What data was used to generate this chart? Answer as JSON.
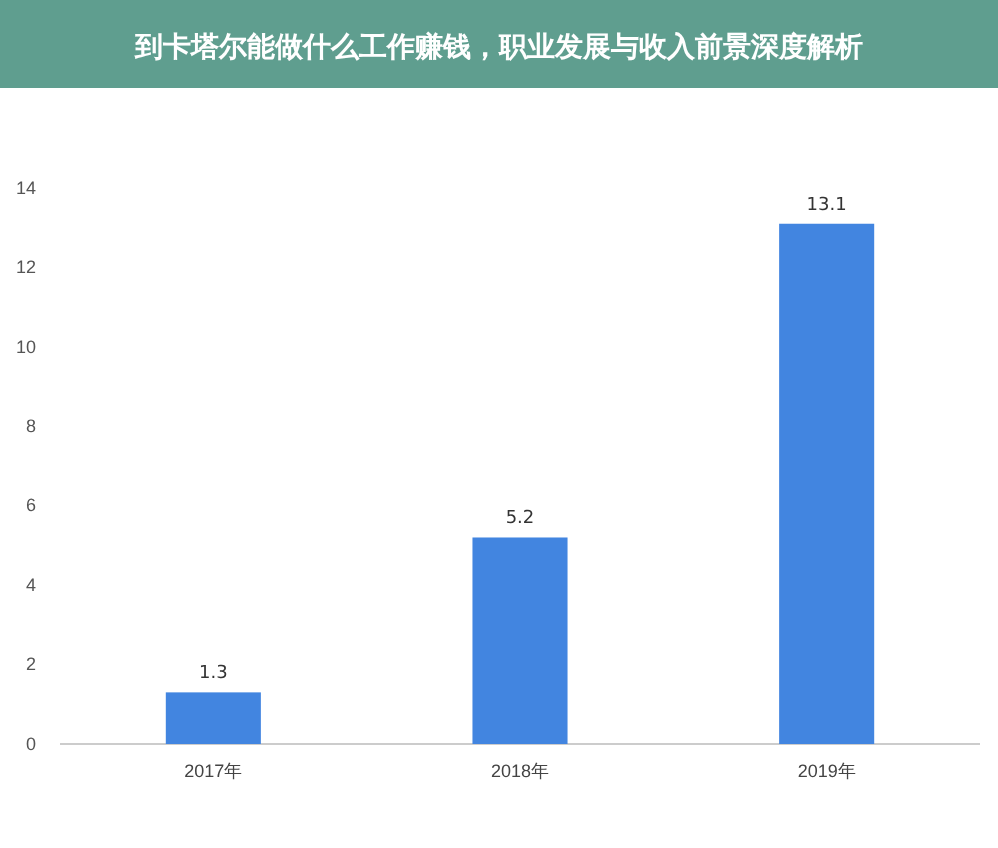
{
  "chart_data": {
    "type": "bar",
    "title": "到卡塔尔能做什么工作赚钱，职业发展与收入前景深度解析",
    "categories": [
      "2017年",
      "2018年",
      "2019年"
    ],
    "values": [
      1.3,
      5.2,
      13.1
    ],
    "color": "#4285e0",
    "ylim": [
      0,
      14
    ],
    "yticks": [
      0,
      2,
      4,
      6,
      8,
      10,
      12,
      14
    ],
    "grid": false,
    "data_labels": true
  }
}
